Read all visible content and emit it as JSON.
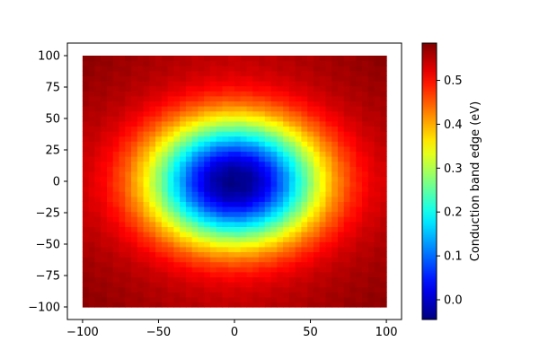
{
  "chart_data": {
    "type": "heatmap",
    "title": "",
    "xlabel": "",
    "ylabel": "",
    "colorbar_label": "Conduction band edge (eV)",
    "colormap": "jet",
    "xlim": [
      -110,
      110
    ],
    "ylim": [
      -110,
      110
    ],
    "data_extent": {
      "x": [
        -100,
        100
      ],
      "y": [
        -100,
        100
      ]
    },
    "x_ticks": [
      -100,
      -50,
      0,
      50,
      100
    ],
    "y_ticks": [
      -100,
      -75,
      -50,
      -25,
      0,
      25,
      50,
      75,
      100
    ],
    "color_range": [
      -0.045,
      0.585
    ],
    "colorbar_ticks": [
      0.0,
      0.1,
      0.2,
      0.3,
      0.4,
      0.5
    ],
    "colorbar_tick_labels": [
      "0.0",
      "0.1",
      "0.2",
      "0.3",
      "0.4",
      "0.5"
    ],
    "field": {
      "description_values": "radially symmetric well",
      "center": [
        0,
        0
      ],
      "min_value": -0.04,
      "max_value": 0.58,
      "well_radius_x": 62,
      "well_radius_y": 55
    },
    "grid": false,
    "legend": "colorbar-right"
  }
}
